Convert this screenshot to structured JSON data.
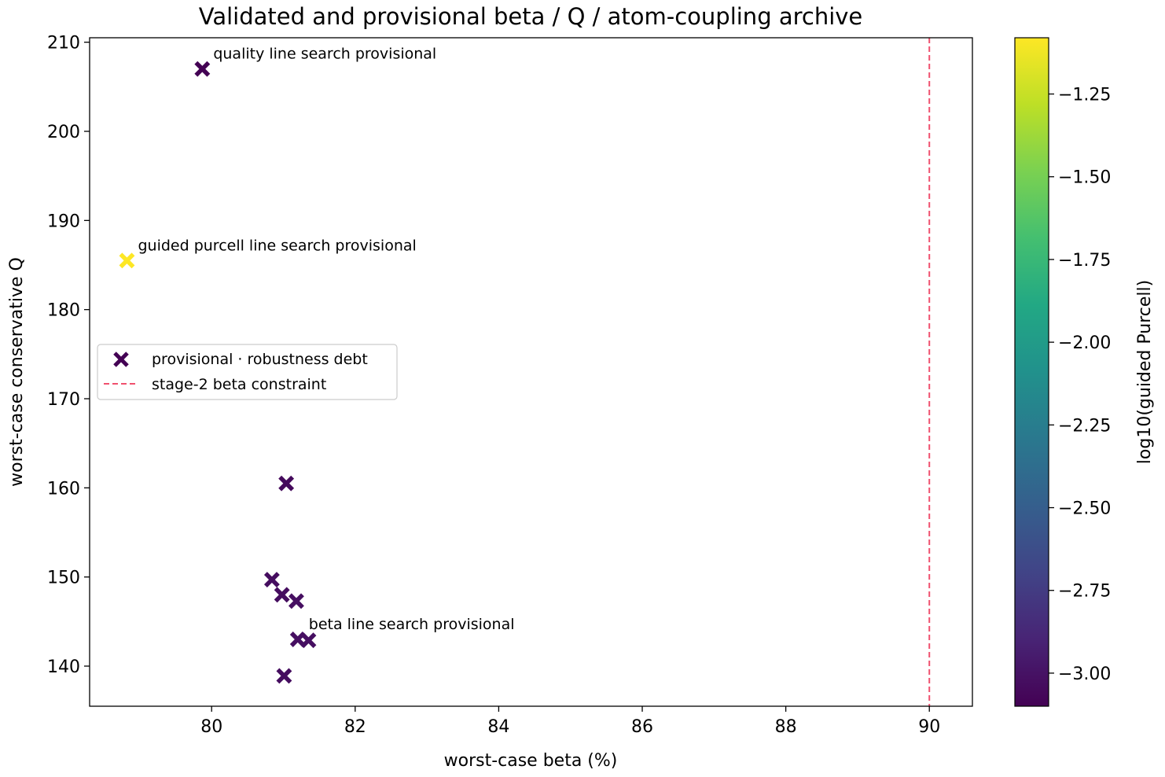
{
  "chart_data": {
    "type": "scatter",
    "title": "Validated and provisional beta / Q / atom-coupling archive",
    "xlabel": "worst-case beta (%)",
    "ylabel": "worst-case conservative Q",
    "xlim": [
      78.3,
      90.6
    ],
    "ylim": [
      135.5,
      210.5
    ],
    "xticks": [
      80,
      82,
      84,
      86,
      88,
      90
    ],
    "yticks": [
      140,
      150,
      160,
      170,
      180,
      190,
      200,
      210
    ],
    "grid": false,
    "colorbar": {
      "label": "log10(guided Purcell)",
      "range": [
        -3.1,
        -1.08
      ],
      "ticks": [
        -3.0,
        -2.75,
        -2.5,
        -2.25,
        -2.0,
        -1.75,
        -1.5,
        -1.25
      ],
      "tick_labels": [
        "−3.00",
        "−2.75",
        "−2.50",
        "−2.25",
        "−2.00",
        "−1.75",
        "−1.50",
        "−1.25"
      ],
      "colormap": "viridis"
    },
    "points": [
      {
        "x": 79.87,
        "y": 207.0,
        "c": -3.1,
        "annotation": "quality line search provisional"
      },
      {
        "x": 78.82,
        "y": 185.5,
        "c": -1.08,
        "annotation": "guided purcell line search provisional"
      },
      {
        "x": 81.04,
        "y": 160.5,
        "c": -3.05,
        "annotation": ""
      },
      {
        "x": 80.84,
        "y": 149.7,
        "c": -3.03,
        "annotation": ""
      },
      {
        "x": 80.98,
        "y": 148.0,
        "c": -3.03,
        "annotation": ""
      },
      {
        "x": 81.18,
        "y": 147.3,
        "c": -3.02,
        "annotation": ""
      },
      {
        "x": 81.35,
        "y": 142.9,
        "c": -3.02,
        "annotation": ""
      },
      {
        "x": 81.2,
        "y": 143.0,
        "c": -3.02,
        "annotation": "beta line search provisional"
      },
      {
        "x": 81.01,
        "y": 138.9,
        "c": -3.03,
        "annotation": ""
      }
    ],
    "reference_line": {
      "orientation": "vertical",
      "x": 90,
      "color": "#f0506e",
      "style": "dashed"
    },
    "legend": {
      "placement": "center-left",
      "entries": [
        {
          "label": "provisional · robustness debt",
          "marker": "x",
          "color": "#440154"
        },
        {
          "label": "stage-2 beta constraint",
          "marker": "dashed-line",
          "color": "#f0506e"
        }
      ]
    }
  }
}
